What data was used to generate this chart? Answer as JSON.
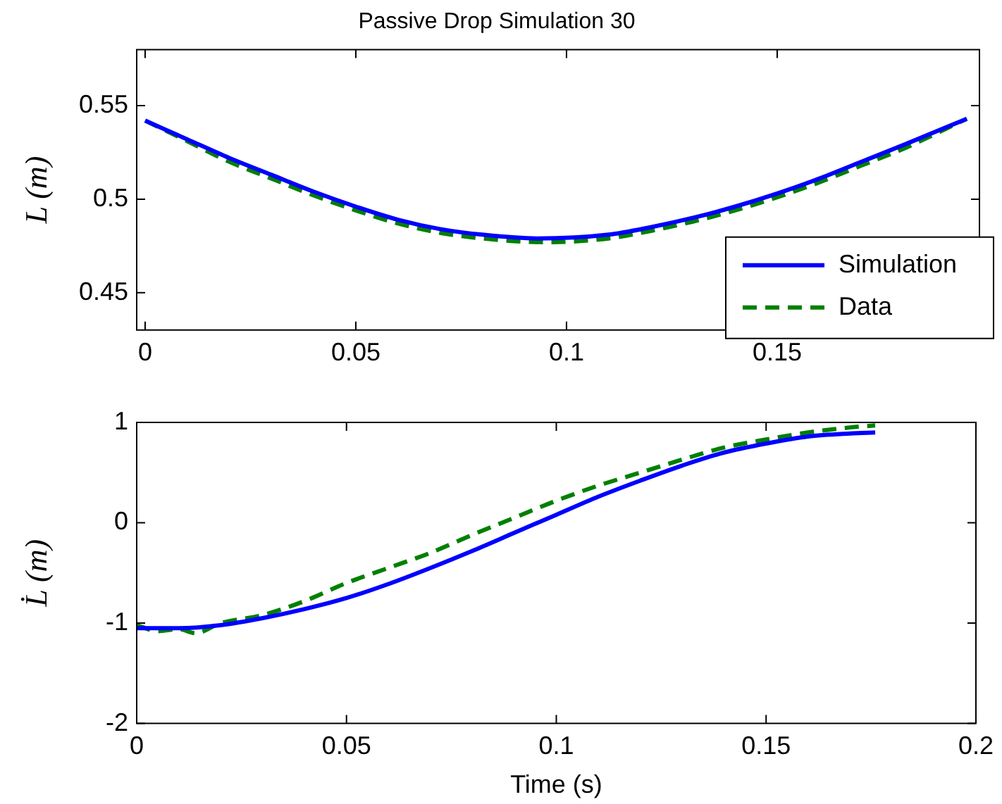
{
  "chart_data": [
    {
      "type": "line",
      "title": "Passive Drop Simulation 30",
      "ylabel": "L (m)",
      "xlim": [
        -0.002,
        0.198
      ],
      "xticks": [
        0,
        0.05,
        0.1,
        0.15
      ],
      "ylim": [
        0.43,
        0.58
      ],
      "yticks": [
        0.45,
        0.5,
        0.55
      ],
      "grid": false,
      "legend": "bottom right",
      "series": [
        {
          "name": "Simulation",
          "color": "#0000ff",
          "line_style": "solid",
          "x": [
            0,
            0.01,
            0.02,
            0.03,
            0.04,
            0.05,
            0.06,
            0.07,
            0.08,
            0.093,
            0.11,
            0.12,
            0.13,
            0.14,
            0.15,
            0.16,
            0.17,
            0.18,
            0.195
          ],
          "values": [
            0.542,
            0.532,
            0.522,
            0.513,
            0.504,
            0.496,
            0.489,
            0.484,
            0.481,
            0.479,
            0.481,
            0.485,
            0.49,
            0.496,
            0.503,
            0.511,
            0.52,
            0.529,
            0.543
          ]
        },
        {
          "name": "Data",
          "color": "#008000",
          "line_style": "dashed",
          "x": [
            0,
            0.01,
            0.02,
            0.03,
            0.04,
            0.05,
            0.06,
            0.07,
            0.08,
            0.095,
            0.11,
            0.12,
            0.13,
            0.14,
            0.15,
            0.16,
            0.17,
            0.18,
            0.195
          ],
          "values": [
            0.542,
            0.531,
            0.52,
            0.511,
            0.502,
            0.494,
            0.487,
            0.482,
            0.479,
            0.477,
            0.479,
            0.483,
            0.488,
            0.494,
            0.501,
            0.509,
            0.518,
            0.527,
            0.543
          ]
        }
      ]
    },
    {
      "type": "line",
      "xlabel": "Time (s)",
      "ylabel": "L̇ (m)",
      "xlim": [
        0,
        0.2
      ],
      "xticks": [
        0,
        0.05,
        0.1,
        0.15,
        0.2
      ],
      "ylim": [
        -2,
        1
      ],
      "yticks": [
        -2,
        -1,
        0,
        1
      ],
      "grid": false,
      "legend": false,
      "series": [
        {
          "color": "#0000ff",
          "line_style": "solid",
          "x": [
            0,
            0.01,
            0.02,
            0.03,
            0.04,
            0.05,
            0.06,
            0.07,
            0.08,
            0.09,
            0.1,
            0.11,
            0.12,
            0.13,
            0.14,
            0.15,
            0.16,
            0.17,
            0.176
          ],
          "values": [
            -1.05,
            -1.05,
            -1.02,
            -0.95,
            -0.86,
            -0.75,
            -0.61,
            -0.45,
            -0.28,
            -0.1,
            0.08,
            0.26,
            0.42,
            0.57,
            0.7,
            0.79,
            0.86,
            0.89,
            0.9
          ]
        },
        {
          "color": "#008000",
          "line_style": "dashed",
          "x": [
            0,
            0.005,
            0.01,
            0.014,
            0.02,
            0.03,
            0.04,
            0.05,
            0.06,
            0.07,
            0.08,
            0.09,
            0.1,
            0.11,
            0.12,
            0.13,
            0.14,
            0.15,
            0.16,
            0.17,
            0.176
          ],
          "values": [
            -1.02,
            -1.08,
            -1.06,
            -1.1,
            -1.0,
            -0.92,
            -0.78,
            -0.6,
            -0.45,
            -0.3,
            -0.12,
            0.05,
            0.22,
            0.37,
            0.5,
            0.63,
            0.75,
            0.83,
            0.9,
            0.95,
            0.97
          ]
        }
      ]
    }
  ]
}
